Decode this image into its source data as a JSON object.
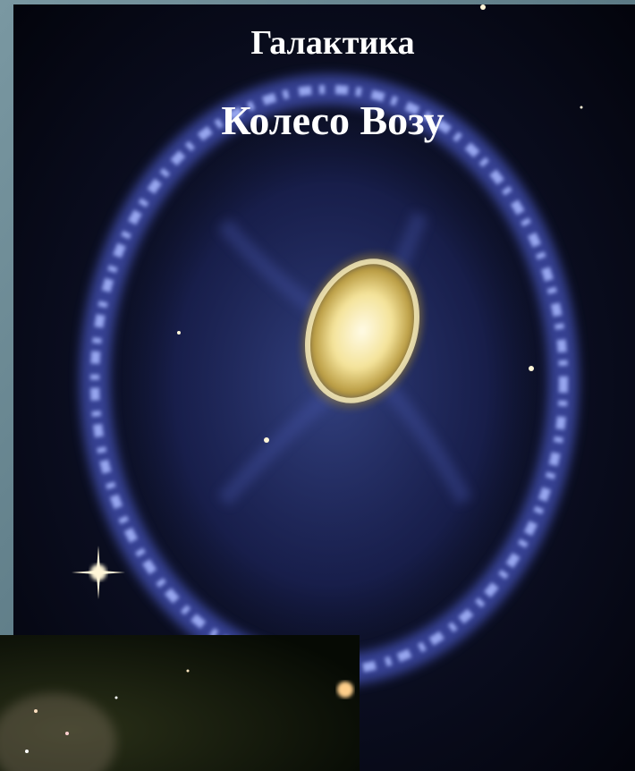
{
  "slide": {
    "title": {
      "line1": "Галактика",
      "line2": "Колесо Возу"
    }
  }
}
